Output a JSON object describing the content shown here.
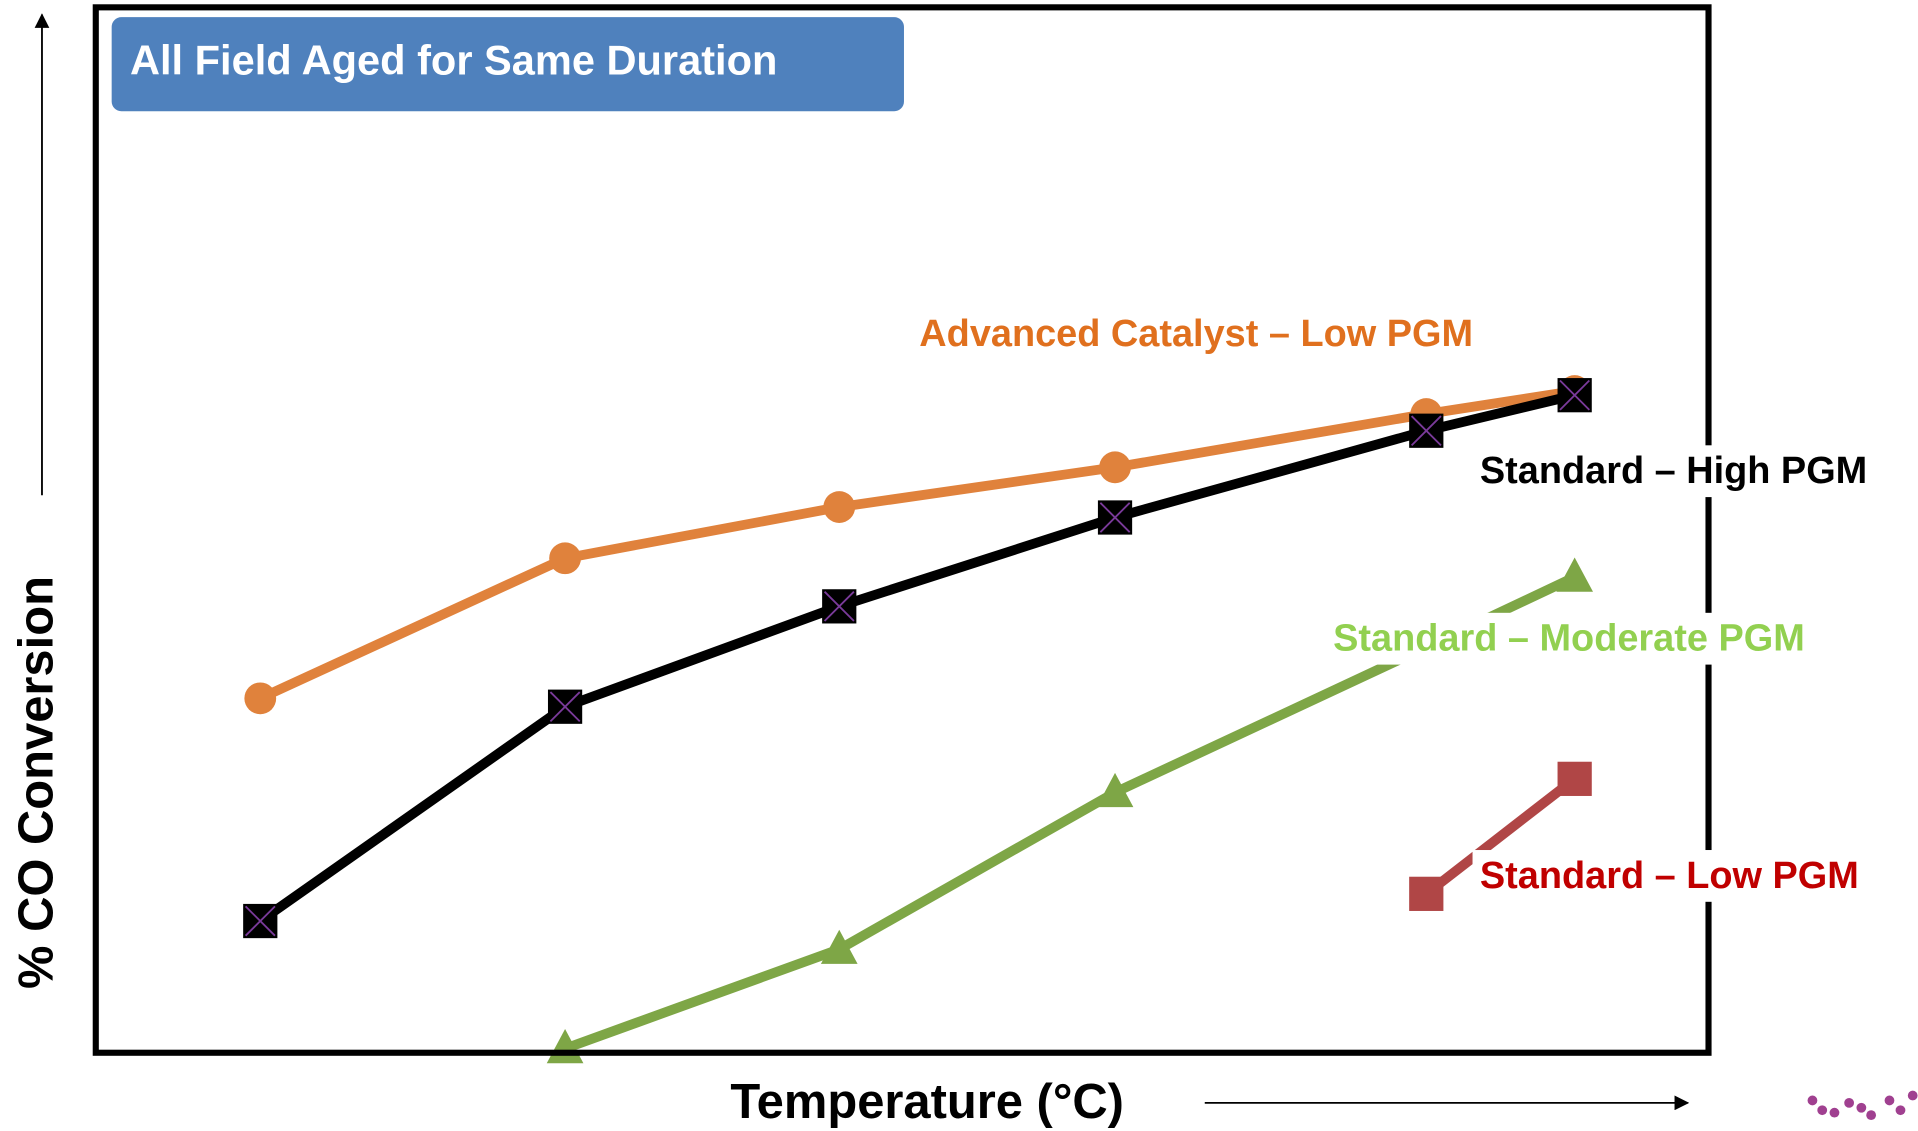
{
  "chart_data": {
    "type": "line",
    "title": "All Field Aged for Same Duration",
    "xlabel": "Temperature (°C)",
    "ylabel": "% CO Conversion",
    "xlim": [
      0,
      100
    ],
    "ylim": [
      0,
      100
    ],
    "x": [
      10.2,
      29.1,
      46.1,
      63.2,
      82.5,
      91.7
    ],
    "series": [
      {
        "name": "Advanced Catalyst – Low PGM",
        "color": "#e0823c",
        "label_color": "#e0701e",
        "marker": "circle",
        "values": [
          33.9,
          47.3,
          52.2,
          56.0,
          61.1,
          63.3
        ]
      },
      {
        "name": "Standard – High PGM",
        "color": "#000000",
        "label_color": "#000000",
        "marker": "xsquare",
        "values": [
          12.6,
          33.1,
          42.7,
          51.2,
          59.5,
          62.9
        ]
      },
      {
        "name": "Standard – Moderate PGM",
        "color": "#7ea646",
        "label_color": "#92d050",
        "marker": "triangle",
        "values": [
          null,
          0.4,
          9.9,
          24.9,
          38.8,
          45.5
        ]
      },
      {
        "name": "Standard – Low PGM",
        "color": "#b04646",
        "label_color": "#c00000",
        "marker": "square",
        "values": [
          null,
          null,
          null,
          null,
          15.2,
          26.2
        ]
      }
    ]
  }
}
